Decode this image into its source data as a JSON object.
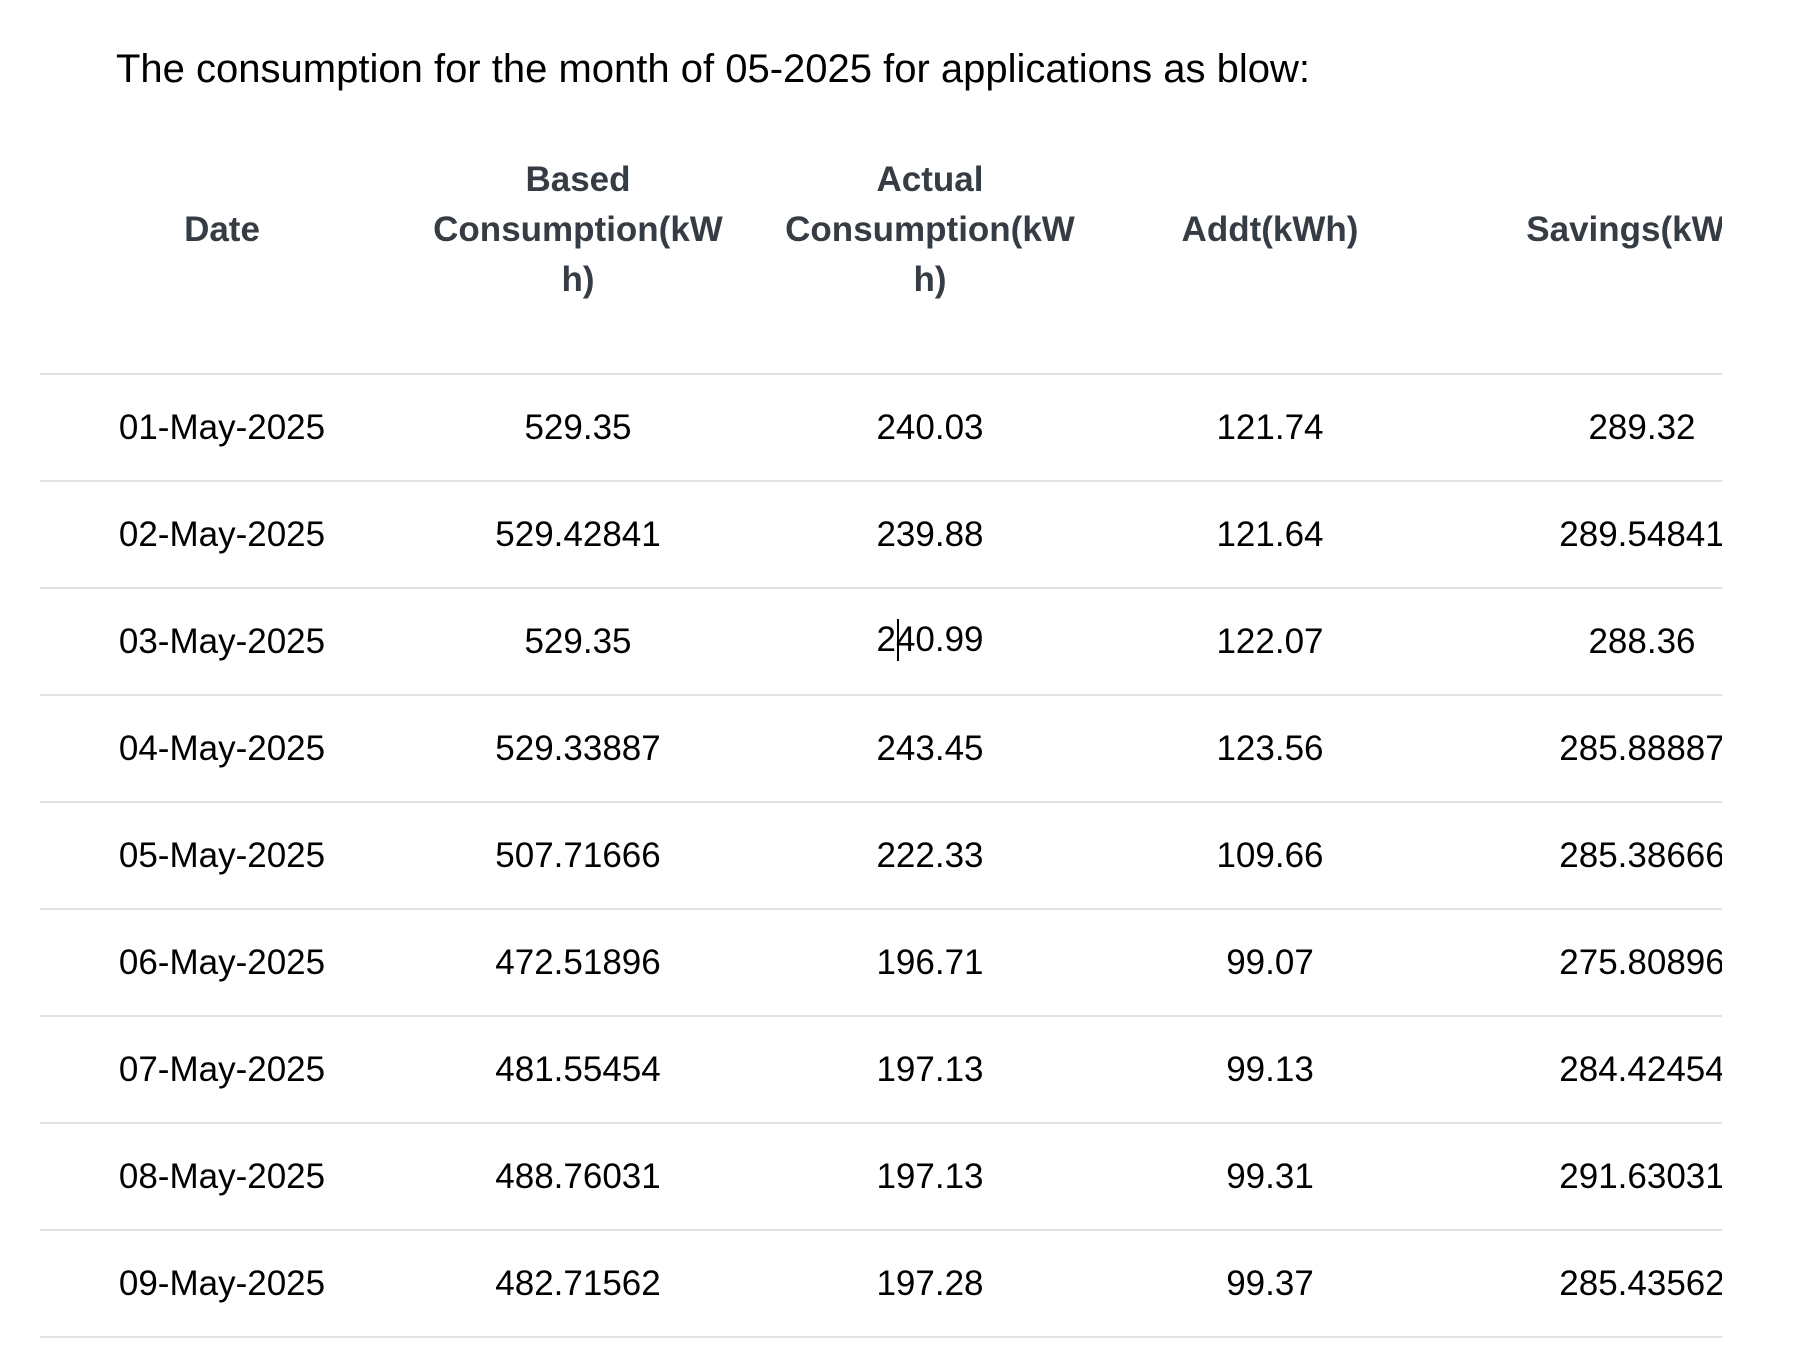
{
  "document": {
    "title": "The consumption for the month of 05-2025 for applications as blow:"
  },
  "table": {
    "columns": [
      {
        "id": "date",
        "label": "Date"
      },
      {
        "id": "based",
        "label": "Based\nConsumption(kW\nh)"
      },
      {
        "id": "actual",
        "label": "Actual\nConsumption(kW\nh)"
      },
      {
        "id": "addt",
        "label": "Addt(kWh)"
      },
      {
        "id": "savings",
        "label": "Savings(kWh)"
      }
    ],
    "rows": [
      {
        "date": "01-May-2025",
        "based": "529.35",
        "actual": "240.03",
        "addt": "121.74",
        "savings": "289.32"
      },
      {
        "date": "02-May-2025",
        "based": "529.42841",
        "actual": "239.88",
        "addt": "121.64",
        "savings": "289.54841"
      },
      {
        "date": "03-May-2025",
        "based": "529.35",
        "actual": "240.99",
        "addt": "122.07",
        "savings": "288.36"
      },
      {
        "date": "04-May-2025",
        "based": "529.33887",
        "actual": "243.45",
        "addt": "123.56",
        "savings": "285.88887"
      },
      {
        "date": "05-May-2025",
        "based": "507.71666",
        "actual": "222.33",
        "addt": "109.66",
        "savings": "285.38666"
      },
      {
        "date": "06-May-2025",
        "based": "472.51896",
        "actual": "196.71",
        "addt": "99.07",
        "savings": "275.80896"
      },
      {
        "date": "07-May-2025",
        "based": "481.55454",
        "actual": "197.13",
        "addt": "99.13",
        "savings": "284.42454"
      },
      {
        "date": "08-May-2025",
        "based": "488.76031",
        "actual": "197.13",
        "addt": "99.31",
        "savings": "291.63031"
      },
      {
        "date": "09-May-2025",
        "based": "482.71562",
        "actual": "197.28",
        "addt": "99.37",
        "savings": "285.43562"
      }
    ],
    "caret": {
      "row_index": 2,
      "column": "actual",
      "after_chars": 1
    }
  },
  "colors": {
    "divider": "#dee2e6",
    "header_text": "#363c44",
    "body_text": "#000000",
    "background": "#ffffff"
  }
}
